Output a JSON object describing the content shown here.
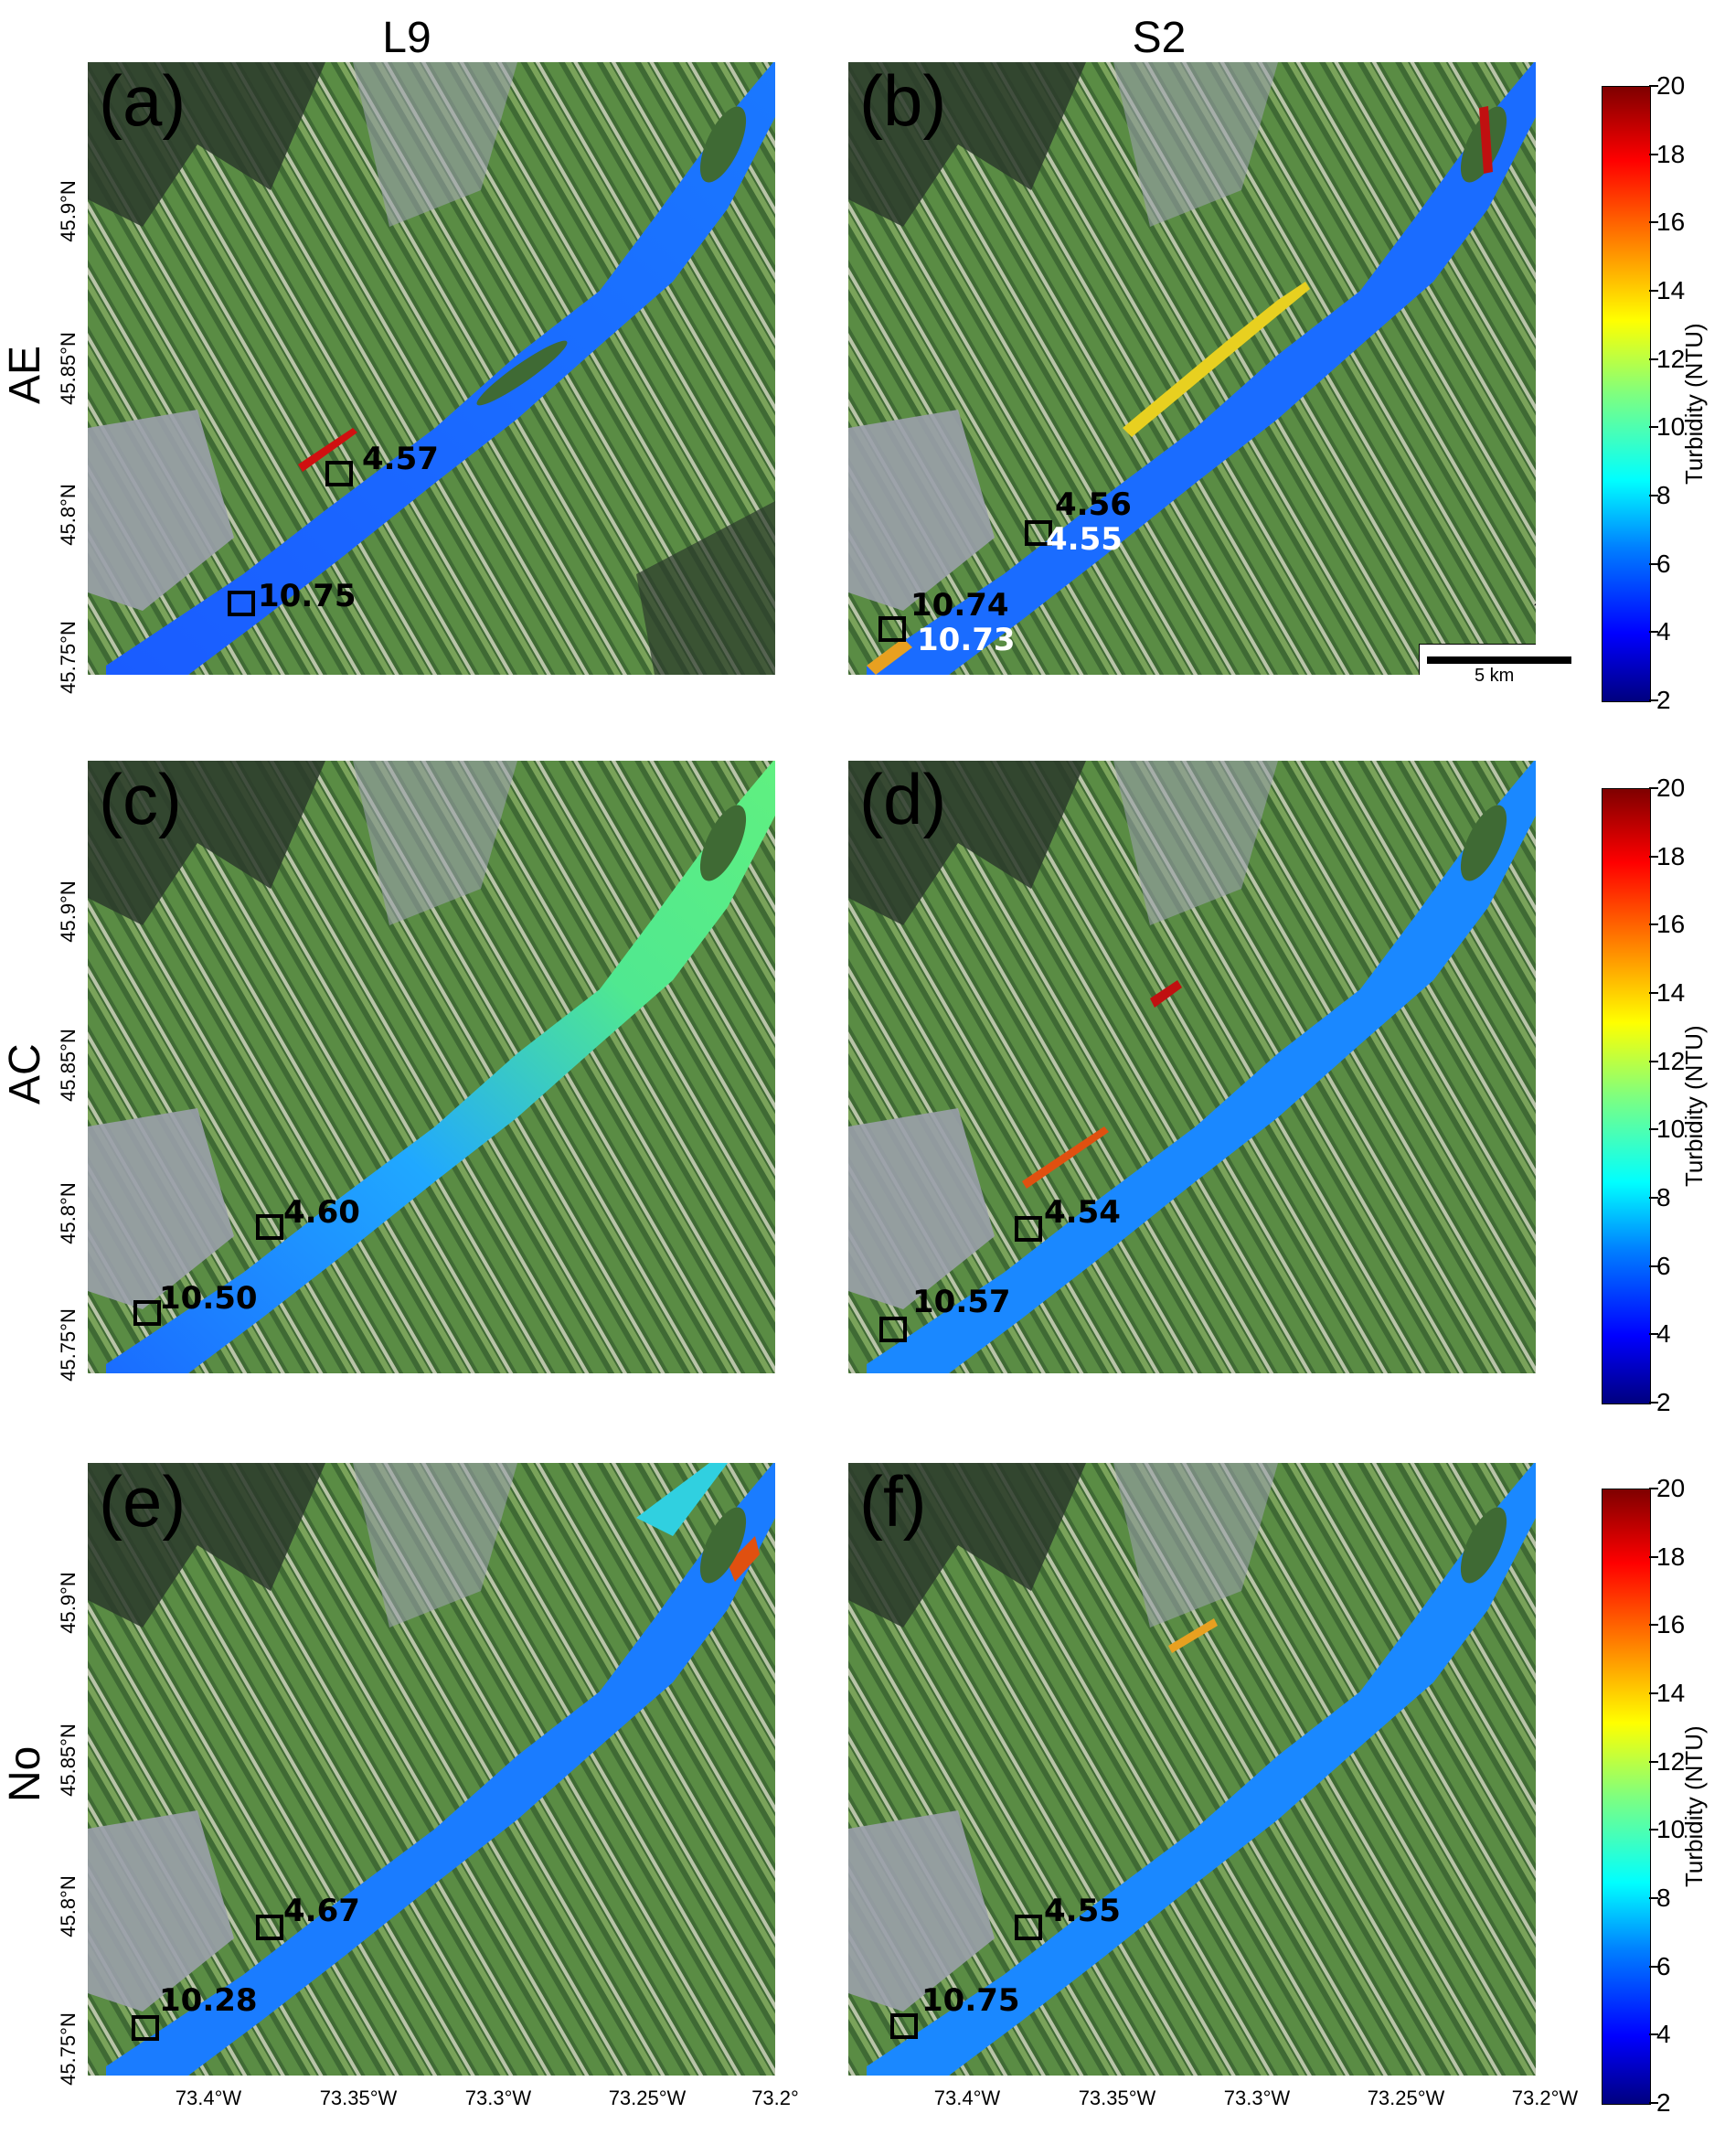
{
  "columns": [
    "L9",
    "S2"
  ],
  "rows": [
    "AE",
    "AC",
    "No"
  ],
  "panels": [
    {
      "label": "(a)",
      "roi_upper": "4.57",
      "roi_lower": "10.75"
    },
    {
      "label": "(b)",
      "roi_upper": "4.56",
      "roi_upper_2": "4.55",
      "roi_lower": "10.74",
      "roi_lower_2": "10.73"
    },
    {
      "label": "(c)",
      "roi_upper": "4.60",
      "roi_lower": "10.50"
    },
    {
      "label": "(d)",
      "roi_upper": "4.54",
      "roi_lower": "10.57"
    },
    {
      "label": "(e)",
      "roi_upper": "4.67",
      "roi_lower": "10.28"
    },
    {
      "label": "(f)",
      "roi_upper": "4.55",
      "roi_lower": "10.75"
    }
  ],
  "latitude_ticks": [
    "45.9°N",
    "45.85°N",
    "45.8°N",
    "45.75°N"
  ],
  "longitude_ticks_left": [
    "73.4°W",
    "73.35°W",
    "73.3°W",
    "73.25°W",
    "73.2°"
  ],
  "longitude_ticks_right": [
    "73.4°W",
    "73.35°W",
    "73.3°W",
    "73.25°W",
    "73.2°W"
  ],
  "colorbar": {
    "label": "Turbidity (NTU)",
    "ticks": [
      "20",
      "18",
      "16",
      "14",
      "12",
      "10",
      "8",
      "6",
      "4",
      "2"
    ],
    "min": 2,
    "max": 20
  },
  "scale_bar": {
    "label": "5 km"
  },
  "north_arrow": {
    "glyph": "↑"
  },
  "colors": {
    "river_low": "#1060f0",
    "river_mid": "#00c8ff",
    "river_ac_l9": "#40e080",
    "land_dark": "#2c3a2c",
    "land_green": "#4a7a3a",
    "urban": "#9aa0aa",
    "roi_box": "#000000"
  }
}
